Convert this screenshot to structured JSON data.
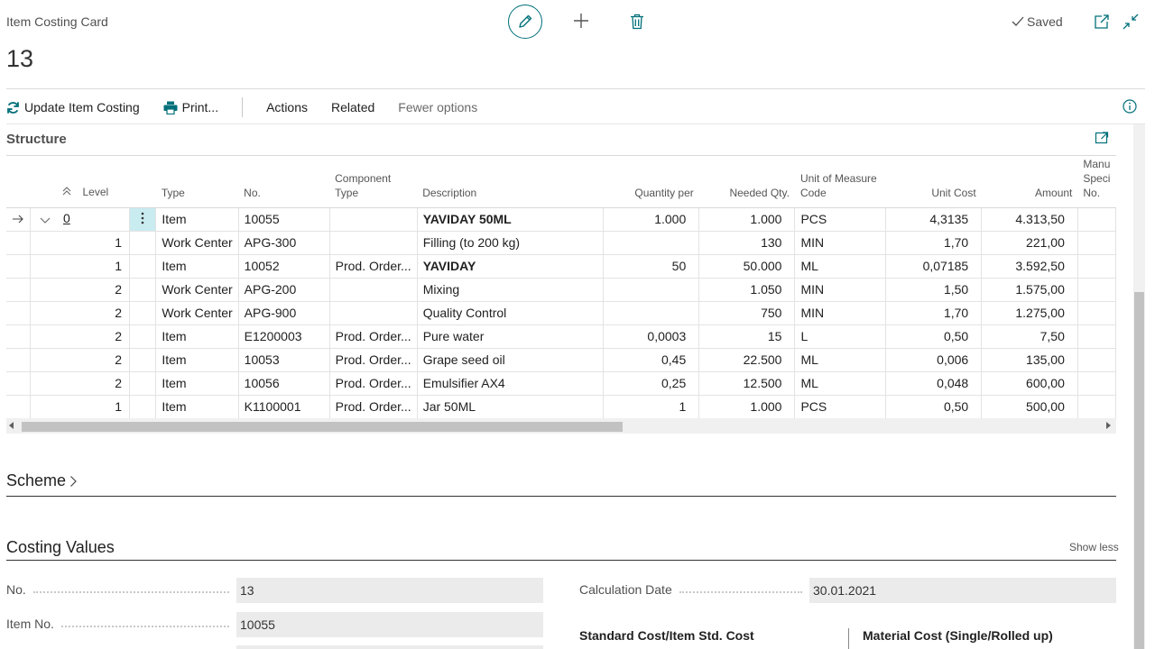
{
  "header": {
    "page_caption": "Item Costing Card",
    "record_no": "13",
    "saved_label": "Saved"
  },
  "actions": {
    "update": "Update Item Costing",
    "print": "Print...",
    "actions": "Actions",
    "related": "Related",
    "fewer": "Fewer options"
  },
  "structure": {
    "title": "Structure",
    "columns": [
      "Level",
      "Type",
      "No.",
      "Component Type",
      "Description",
      "Quantity per",
      "Needed Qty.",
      "Unit of Measure Code",
      "Unit Cost",
      "Amount",
      "Manu Speci No."
    ],
    "rows": [
      {
        "level": "0",
        "type": "Item",
        "no": "10055",
        "comp": "",
        "desc": "YAVIDAY 50ML",
        "qty": "1.000",
        "needed": "1.000",
        "uom": "PCS",
        "cost": "4,3135",
        "amount": "4.313,50",
        "bold": true,
        "selected": true
      },
      {
        "level": "1",
        "type": "Work Center",
        "no": "APG-300",
        "comp": "",
        "desc": "Filling (to 200 kg)",
        "qty": "",
        "needed": "130",
        "uom": "MIN",
        "cost": "1,70",
        "amount": "221,00",
        "bold": false
      },
      {
        "level": "1",
        "type": "Item",
        "no": "10052",
        "comp": "Prod. Order...",
        "desc": "YAVIDAY",
        "qty": "50",
        "needed": "50.000",
        "uom": "ML",
        "cost": "0,07185",
        "amount": "3.592,50",
        "bold": true
      },
      {
        "level": "2",
        "type": "Work Center",
        "no": "APG-200",
        "comp": "",
        "desc": "Mixing",
        "qty": "",
        "needed": "1.050",
        "uom": "MIN",
        "cost": "1,50",
        "amount": "1.575,00",
        "bold": false
      },
      {
        "level": "2",
        "type": "Work Center",
        "no": "APG-900",
        "comp": "",
        "desc": "Quality Control",
        "qty": "",
        "needed": "750",
        "uom": "MIN",
        "cost": "1,70",
        "amount": "1.275,00",
        "bold": false
      },
      {
        "level": "2",
        "type": "Item",
        "no": "E1200003",
        "comp": "Prod. Order...",
        "desc": "Pure water",
        "qty": "0,0003",
        "needed": "15",
        "uom": "L",
        "cost": "0,50",
        "amount": "7,50",
        "bold": false
      },
      {
        "level": "2",
        "type": "Item",
        "no": "10053",
        "comp": "Prod. Order...",
        "desc": "Grape seed oil",
        "qty": "0,45",
        "needed": "22.500",
        "uom": "ML",
        "cost": "0,006",
        "amount": "135,00",
        "bold": false
      },
      {
        "level": "2",
        "type": "Item",
        "no": "10056",
        "comp": "Prod. Order...",
        "desc": "Emulsifier AX4",
        "qty": "0,25",
        "needed": "12.500",
        "uom": "ML",
        "cost": "0,048",
        "amount": "600,00",
        "bold": false
      },
      {
        "level": "1",
        "type": "Item",
        "no": "K1100001",
        "comp": "Prod. Order...",
        "desc": "Jar 50ML",
        "qty": "1",
        "needed": "1.000",
        "uom": "PCS",
        "cost": "0,50",
        "amount": "500,00",
        "bold": false
      }
    ]
  },
  "scheme": {
    "title": "Scheme"
  },
  "costing": {
    "title": "Costing Values",
    "show_less": "Show less",
    "no_label": "No.",
    "no_value": "13",
    "item_no_label": "Item No.",
    "item_no_value": "10055",
    "calc_date_label": "Calculation Date",
    "calc_date_value": "30.01.2021",
    "std_cost_head": "Standard Cost/Item Std. Cost",
    "material_head": "Material Cost (Single/Rolled up)"
  },
  "colors": {
    "accent": "#00707a",
    "selected_cell": "#c9ecf1"
  }
}
